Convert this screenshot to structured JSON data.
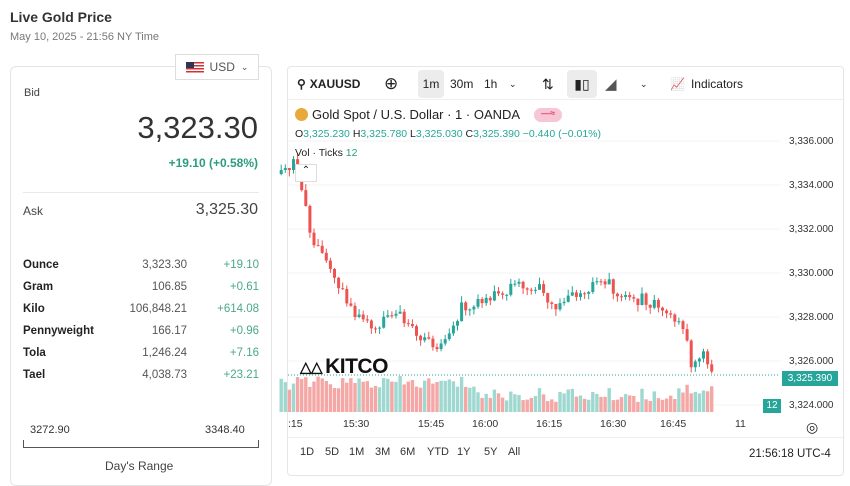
{
  "header": {
    "title": "Live Gold Price",
    "date": "May 10, 2025 - 21:56 NY Time"
  },
  "currency": {
    "selected": "USD",
    "icon": "us-flag-icon"
  },
  "bid": {
    "label": "Bid",
    "price": "3,323.30",
    "change": "+19.10 (+0.58%)"
  },
  "ask": {
    "label": "Ask",
    "price": "3,325.30"
  },
  "units": [
    {
      "name": "Ounce",
      "value": "3,323.30",
      "change": "+19.10"
    },
    {
      "name": "Gram",
      "value": "106.85",
      "change": "+0.61"
    },
    {
      "name": "Kilo",
      "value": "106,848.21",
      "change": "+614.08"
    },
    {
      "name": "Pennyweight",
      "value": "166.17",
      "change": "+0.96"
    },
    {
      "name": "Tola",
      "value": "1,246.24",
      "change": "+7.16"
    },
    {
      "name": "Tael",
      "value": "4,038.73",
      "change": "+23.21"
    }
  ],
  "range": {
    "low": "3272.90",
    "high": "3348.40",
    "label": "Day's Range"
  },
  "toolbar": {
    "symbol": "XAUUSD",
    "intervals": [
      "1m",
      "30m",
      "1h"
    ],
    "active_interval": "1m",
    "indicators": "Indicators"
  },
  "legend": {
    "name": "Gold Spot / U.S. Dollar · 1 · OANDA",
    "o_label": "O",
    "o": "3,325.230",
    "h_label": "H",
    "h": "3,325.780",
    "l_label": "L",
    "l": "3,325.030",
    "c_label": "C",
    "c": "3,325.390",
    "chg": "−0.440 (−0.01%)",
    "vol_label": "Vol · Ticks",
    "vol": "12"
  },
  "watermark": "KITCO",
  "ranges": [
    "1D",
    "5D",
    "1M",
    "3M",
    "6M",
    "YTD",
    "1Y",
    "5Y",
    "All"
  ],
  "clock": "21:56:18 UTC-4",
  "colors": {
    "up": "#26a69a",
    "down": "#ef5350",
    "up_vol": "#9fd8d0",
    "down_vol": "#f4a7a5",
    "accent": "#2a9d7c"
  },
  "chart_data": {
    "type": "candlestick",
    "y_ticks": [
      "3,336.000",
      "3,334.000",
      "3,332.000",
      "3,330.000",
      "3,328.000",
      "3,326.000",
      "3,324.000"
    ],
    "ylim": [
      3323.5,
      3337
    ],
    "x_ticks": [
      ":15",
      "15:30",
      "15:45",
      "16:00",
      "16:15",
      "16:30",
      "16:45",
      "11"
    ],
    "last_price": "3,325.390",
    "last_volume": "12",
    "close_keypoints": [
      [
        "15:12",
        3334.5
      ],
      [
        "15:15",
        3335.2
      ],
      [
        "15:20",
        3331.2
      ],
      [
        "15:25",
        3330.0
      ],
      [
        "15:28",
        3328.6
      ],
      [
        "15:30",
        3328.0
      ],
      [
        "15:35",
        3327.6
      ],
      [
        "15:40",
        3328.1
      ],
      [
        "15:45",
        3327.3
      ],
      [
        "15:50",
        3326.5
      ],
      [
        "15:53",
        3327.1
      ],
      [
        "15:56",
        3328.4
      ],
      [
        "16:00",
        3328.7
      ],
      [
        "16:05",
        3329.0
      ],
      [
        "16:10",
        3329.6
      ],
      [
        "16:15",
        3329.2
      ],
      [
        "16:20",
        3328.5
      ],
      [
        "16:25",
        3329.1
      ],
      [
        "16:30",
        3329.7
      ],
      [
        "16:35",
        3329.0
      ],
      [
        "16:40",
        3328.8
      ],
      [
        "16:45",
        3328.5
      ],
      [
        "16:50",
        3327.6
      ],
      [
        "16:52",
        3325.9
      ],
      [
        "16:55",
        3326.5
      ],
      [
        "16:57",
        3325.4
      ]
    ]
  }
}
